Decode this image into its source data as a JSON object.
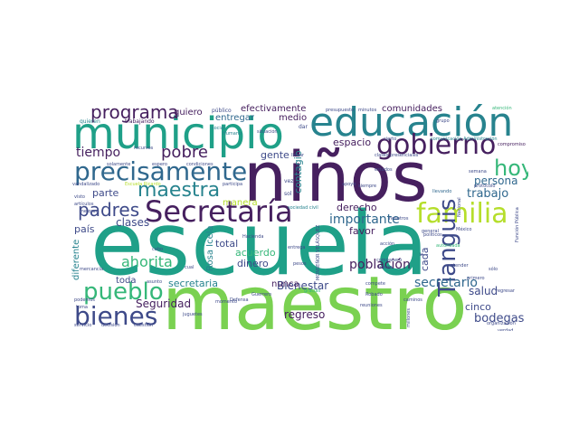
{
  "palette": {
    "dark_purple": "#46205f",
    "indigo": "#3e4a89",
    "blue": "#30688e",
    "teal": "#27838e",
    "green_teal": "#1fa088",
    "green": "#35b779",
    "light_green": "#7ad151",
    "yellow_green": "#b5de2b",
    "yellow": "#e2e418"
  },
  "words": {
    "escuela": "escuela",
    "maestro": "maestro",
    "ninos": "niños",
    "municipio": "municipio",
    "educacion": "educación",
    "secretaria": "Secretaría",
    "precisamente": "precisamente",
    "gobierno": "gobierno",
    "maestra": "maestra",
    "familia": "familia",
    "pueblo": "pueblo",
    "bienes": "bienes",
    "programa": "programa",
    "tianguis": "Tianguis",
    "hoy": "hoy",
    "padres": "padres",
    "pobre": "pobre",
    "tiempo": "tiempo",
    "clases": "clases",
    "ahorita": "ahorita",
    "importante": "importante",
    "poblacion": "población",
    "secretario": "secretario",
    "seguridad": "Seguridad",
    "bodegas": "bodegas",
    "bienestar": "Bienestar",
    "trabajo": "trabajo",
    "persona": "persona",
    "salud": "salud",
    "regreso": "regreso",
    "cinco": "cinco",
    "secretaria_lower": "secretaria",
    "dinero": "dinero",
    "acuerdo": "acuerdo",
    "total": "total",
    "derecho": "derecho",
    "favor": "favor",
    "pais": "país",
    "parte": "parte",
    "manera": "manera",
    "toda": "toda",
    "nunca": "nunca",
    "contagio": "contagio",
    "gente": "gente",
    "espacio": "espacio",
    "cada": "cada",
    "quiero": "quiero",
    "efectivamente": "efectivamente",
    "entregar": "entregar",
    "medio": "medio",
    "comunidades": "comunidades",
    "diferente": "diferente",
    "rosa_icela": "Rosa Icela",
    "guerrero": "Guerrero",
    "hacienda": "Hacienda",
    "nacional": "Nacional",
    "quieren": "quieren",
    "trabajando": "trabajando",
    "publico": "público",
    "presupuesto": "presupuesto",
    "minutos": "minutos",
    "atencion": "atención",
    "grupo": "grupo",
    "cierto": "cierto",
    "comunicacion": "comunicación Administración",
    "compromiso": "compromiso",
    "clases_presenciales": "clases presenciales",
    "situacion": "situación",
    "llevar": "llevar",
    "humano": "Humano",
    "recursos": "recursos",
    "social": "social",
    "dar": "dar",
    "solamente": "solamente",
    "espero": "espero",
    "condiciones": "condiciones",
    "semana": "semana",
    "llevando": "llevando",
    "protocolo": "protocolo",
    "funcion_publica": "Función Pública",
    "vandalizado": "vandalizado",
    "escuela_ricardo": "Escuela Ricardo",
    "participa": "participa",
    "siempre": "siempre",
    "apoyo": "apoyo",
    "visto": "visto",
    "articulos": "artículos",
    "sociedad_civil": "sociedad civil",
    "mexico": "México",
    "cabo": "cabo",
    "cual": "cual",
    "entrega": "entrega",
    "accion": "acción",
    "general": "general",
    "autorizada": "autorizada",
    "ir": "ir",
    "atender": "atender",
    "solo": "sólo",
    "pesos": "pesos",
    "fuerza": "fuerza",
    "mercancia": "mercancía",
    "asunto": "asunto",
    "defensa": "Defensa",
    "compete": "compete",
    "robado": "Robado",
    "caminos": "caminos",
    "primero": "primero",
    "regresar": "regresar",
    "podemos": "podemos",
    "toma": "toma",
    "servicio": "servicio",
    "decisión": "decisión",
    "cuestion": "cuestión",
    "juguetes": "juguetes",
    "momento": "momento",
    "reuniones": "reuniones",
    "millones": "millones",
    "organizacion": "organización",
    "verdad": "verdad",
    "politicos": "políticos",
    "companero": "compañero",
    "mejorar": "mejorar",
    "gracias": "gracias",
    "nosotros": "nosotros",
    "estados": "estados",
    "monsenor_velasquez": "MONSEÑOR VELÁSQUEZ",
    "sol": "sol",
    "vez": "vez"
  }
}
